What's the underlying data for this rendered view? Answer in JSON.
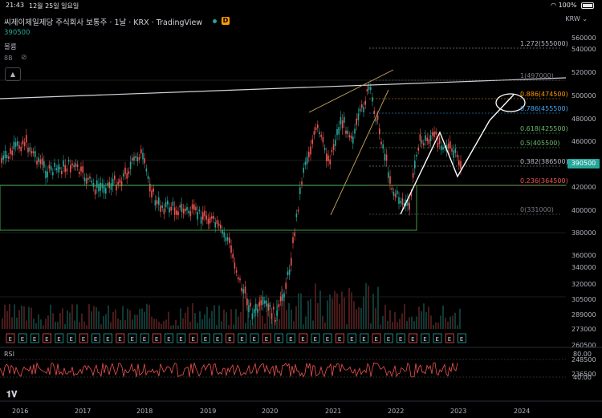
{
  "status_bar": {
    "time": "21:43",
    "date": "12월 25일 일요일",
    "battery": "100%"
  },
  "header": {
    "title": "씨제이제일제당 주식회사 보통주 · 1날 · KRX · TradingView",
    "d_badge": "D",
    "price": "390500",
    "volume_label": "볼륨",
    "volume_value": "8B"
  },
  "price_axis": {
    "currency": "KRW",
    "ticks": [
      "560000",
      "540000",
      "520000",
      "500000",
      "480000",
      "460000",
      "440000",
      "420000",
      "400000",
      "380000",
      "360000",
      "340000",
      "320000",
      "305000",
      "289000",
      "273000",
      "260500",
      "248500",
      "236500"
    ],
    "current_price": "390500"
  },
  "fib_levels": [
    {
      "label": "1.272(555000)",
      "color": "#b2b5be"
    },
    {
      "label": "1(497000)",
      "color": "#787b86"
    },
    {
      "label": "0.886(474500)",
      "color": "#ff9800"
    },
    {
      "label": "0.786(455500)",
      "color": "#42a5f5"
    },
    {
      "label": "0.618(425500)",
      "color": "#66bb6a"
    },
    {
      "label": "0.5(405500)",
      "color": "#66bb6a"
    },
    {
      "label": "0.382(386500)",
      "color": "#b2b5be"
    },
    {
      "label": "0.236(364500)",
      "color": "#ef5350"
    },
    {
      "label": "0(331000)",
      "color": "#787b86"
    }
  ],
  "event_markers": [
    "E",
    "E",
    "E",
    "E",
    "E",
    "E",
    "E",
    "E",
    "E",
    "E",
    "E",
    "E",
    "E",
    "E",
    "E",
    "E",
    "E",
    "E",
    "E",
    "E",
    "E",
    "E",
    "E",
    "E",
    "E",
    "E",
    "E",
    "E",
    "E",
    "E",
    "E",
    "E",
    "E",
    "E",
    "E",
    "E",
    "E",
    "E"
  ],
  "rsi": {
    "label": "RSI",
    "ticks": [
      "80.00",
      "40.00"
    ]
  },
  "time_axis": {
    "labels": [
      "2016",
      "2017",
      "2018",
      "2019",
      "2020",
      "2021",
      "2022",
      "2023",
      "2024"
    ]
  },
  "icons": {
    "logo": "tradingview-logo",
    "eye": "eye-off-icon",
    "collapse": "chevron-up-icon",
    "wifi": "wifi-icon",
    "battery": "battery-icon"
  }
}
